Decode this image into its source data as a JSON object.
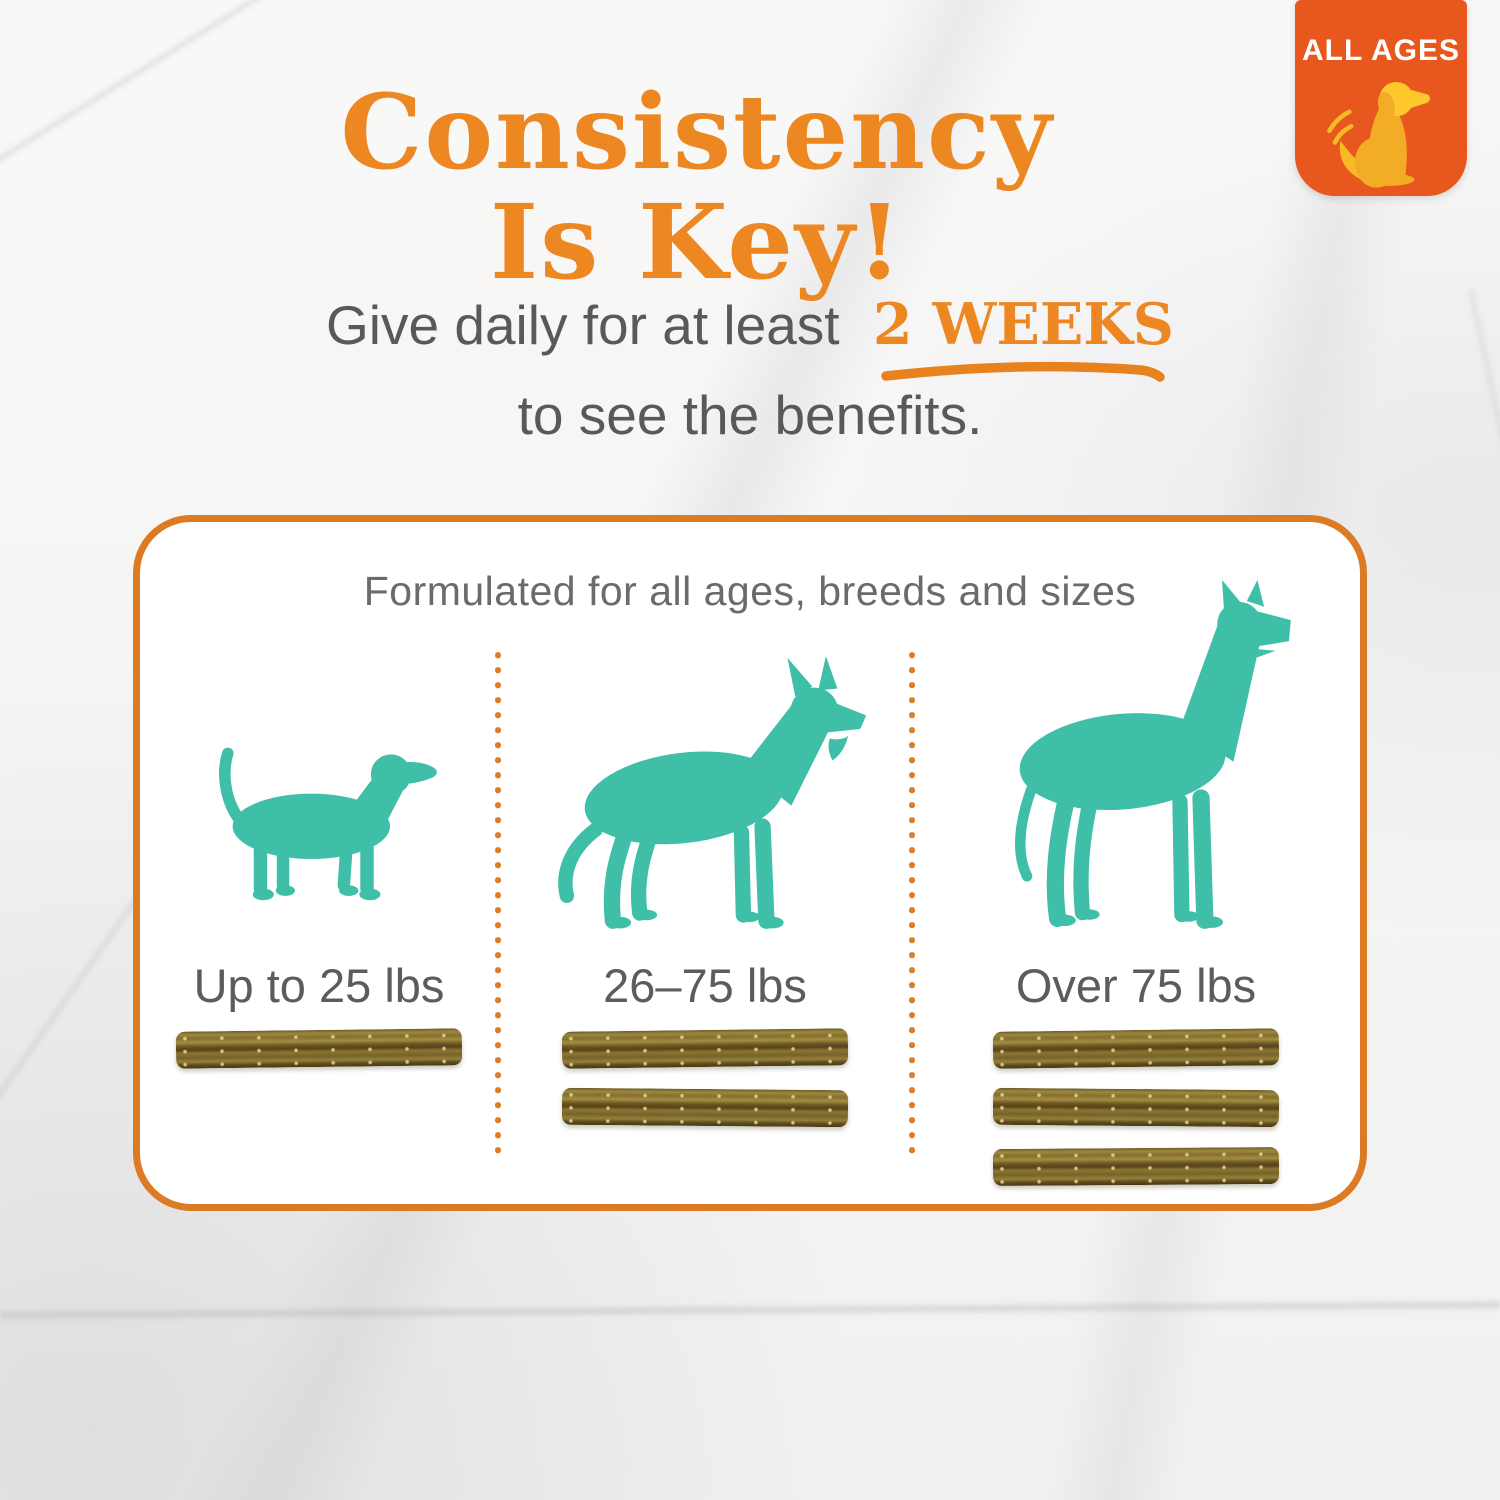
{
  "header": {
    "title_line1": "Consistency",
    "title_line2": "Is Key!",
    "subtitle": {
      "prefix": "Give daily for at least",
      "highlight": "2 WEEKS",
      "suffix": "to see the benefits."
    }
  },
  "badge": {
    "label": "ALL AGES",
    "icon": "wagging-dog-icon"
  },
  "card": {
    "heading": "Formulated for all ages, breeds and sizes",
    "columns": [
      {
        "size": "small",
        "dog_icon": "small-dog-silhouette",
        "label": "Up to 25 lbs",
        "chew_count": 1
      },
      {
        "size": "medium",
        "dog_icon": "medium-dog-silhouette",
        "label": "26–75 lbs",
        "chew_count": 2
      },
      {
        "size": "large",
        "dog_icon": "large-dog-silhouette",
        "label": "Over 75 lbs",
        "chew_count": 3
      }
    ]
  },
  "colors": {
    "orange_primary": "#EC8722",
    "orange_badge": "#E8571D",
    "orange_border": "#DC7B24",
    "teal_dog": "#40BFA8",
    "gold_dog": "#F5B824",
    "text_gray": "#5C5C5C",
    "chew_brown": "#7A6428"
  }
}
